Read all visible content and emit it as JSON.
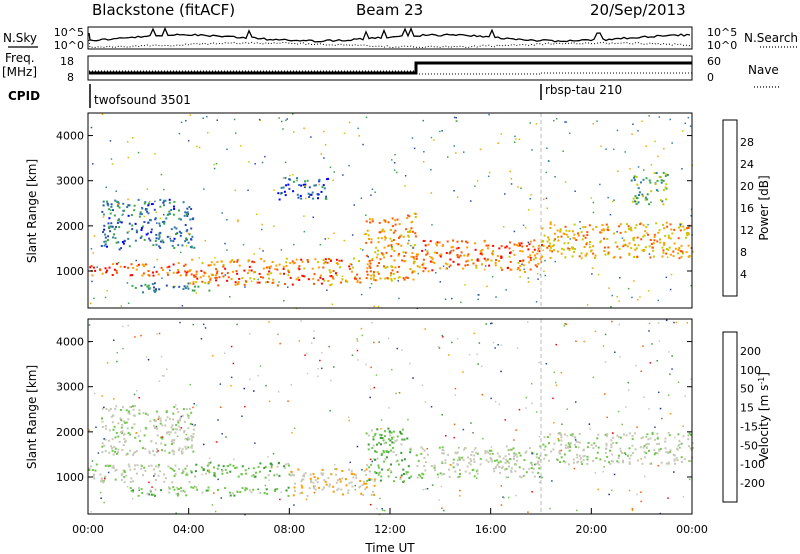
{
  "header": {
    "radar": "Blackstone (fitACF)",
    "beam": "Beam 23",
    "date": "20/Sep/2013"
  },
  "strip": {
    "nsky_label": "N.Sky",
    "nsearch_label": "N.Search",
    "nsky_ticks": [
      "10^5",
      "10^0"
    ],
    "nsearch_ticks": [
      "10^5",
      "10^0"
    ],
    "freq_label_1": "Freq.",
    "freq_label_2": "[MHz]",
    "freq_ticks": [
      "18",
      "8"
    ],
    "nave_label": "Nave",
    "nave_ticks": [
      "60",
      "0"
    ],
    "cpid_label": "CPID",
    "cpid_segments": [
      {
        "name": "twofsound 3501",
        "start_hour": 0,
        "end_hour": 18
      },
      {
        "name": "rbsp-tau 210",
        "start_hour": 18,
        "end_hour": 24
      }
    ]
  },
  "colors": {
    "power_scale": [
      "#0000ff",
      "#2a4fb0",
      "#2e7fa8",
      "#38a84a",
      "#c8c800",
      "#ffa000",
      "#ff5500",
      "#ff0000"
    ],
    "velocity_scale": [
      "#ff0000",
      "#ff5a00",
      "#ff9a00",
      "#c8c8b8",
      "#c8c8b8",
      "#6ec84a",
      "#3a9a3a",
      "#2a4a9a",
      "#1a2a8a"
    ]
  },
  "chart_data": [
    {
      "type": "heatmap",
      "title": "",
      "xlabel": "",
      "ylabel": "Slant Range [km]",
      "x_range_hours": [
        0,
        24
      ],
      "ylim": [
        180,
        4500
      ],
      "y_ticks": [
        "4000",
        "3000",
        "2000",
        "1000"
      ],
      "y_tick_values": [
        4000,
        3000,
        2000,
        1000
      ],
      "colorbar_label": "Power [dB]",
      "colorbar_ticks": [
        "28",
        "24",
        "20",
        "16",
        "12",
        "8",
        "4"
      ],
      "colorbar_range": [
        0,
        32
      ],
      "bands": [
        {
          "t0": 0.0,
          "t1": 4.0,
          "r0": 900,
          "r1": 1200,
          "power": 26
        },
        {
          "t0": 0.5,
          "t1": 4.2,
          "r0": 1500,
          "r1": 2600,
          "power": 9
        },
        {
          "t0": 1.5,
          "t1": 4.8,
          "r0": 550,
          "r1": 750,
          "power": 10
        },
        {
          "t0": 4.0,
          "t1": 10.8,
          "r0": 700,
          "r1": 1300,
          "power": 24
        },
        {
          "t0": 7.5,
          "t1": 9.5,
          "r0": 2600,
          "r1": 3100,
          "power": 7
        },
        {
          "t0": 11.0,
          "t1": 13.0,
          "r0": 800,
          "r1": 2300,
          "power": 22
        },
        {
          "t0": 13.0,
          "t1": 18.0,
          "r0": 1000,
          "r1": 1700,
          "power": 25
        },
        {
          "t0": 18.0,
          "t1": 24.0,
          "r0": 1300,
          "r1": 2100,
          "power": 22
        },
        {
          "t0": 21.5,
          "t1": 23.0,
          "r0": 2500,
          "r1": 3200,
          "power": 14
        }
      ]
    },
    {
      "type": "heatmap",
      "title": "",
      "xlabel": "Time UT",
      "ylabel": "Slant Range [km]",
      "x_range_hours": [
        0,
        24
      ],
      "x_ticks": [
        "00:00",
        "04:00",
        "08:00",
        "12:00",
        "16:00",
        "20:00",
        "00:00"
      ],
      "x_tick_hours": [
        0,
        4,
        8,
        12,
        16,
        20,
        24
      ],
      "ylim": [
        180,
        4500
      ],
      "y_ticks": [
        "4000",
        "3000",
        "2000",
        "1000"
      ],
      "y_tick_values": [
        4000,
        3000,
        2000,
        1000
      ],
      "colorbar_label": "Velocity [m s^-1]",
      "colorbar_ticks": [
        "200",
        "100",
        "50",
        "15",
        "-15",
        "-50",
        "-100",
        "-200"
      ],
      "colorbar_range": [
        -250,
        250
      ],
      "bands": [
        {
          "t0": 0.0,
          "t1": 4.0,
          "r0": 900,
          "r1": 1300,
          "velocity": 0
        },
        {
          "t0": 0.5,
          "t1": 4.2,
          "r0": 1500,
          "r1": 2600,
          "velocity": 0
        },
        {
          "t0": 4.0,
          "t1": 8.0,
          "r0": 1000,
          "r1": 1350,
          "velocity": 60
        },
        {
          "t0": 1.5,
          "t1": 8.0,
          "r0": 600,
          "r1": 800,
          "velocity": 60
        },
        {
          "t0": 8.0,
          "t1": 11.5,
          "r0": 600,
          "r1": 1200,
          "velocity": -60
        },
        {
          "t0": 11.0,
          "t1": 12.8,
          "r0": 900,
          "r1": 2100,
          "velocity": 60
        },
        {
          "t0": 13.0,
          "t1": 18.0,
          "r0": 1000,
          "r1": 1700,
          "velocity": 0
        },
        {
          "t0": 18.0,
          "t1": 24.0,
          "r0": 1300,
          "r1": 2000,
          "velocity": 0
        }
      ]
    }
  ]
}
